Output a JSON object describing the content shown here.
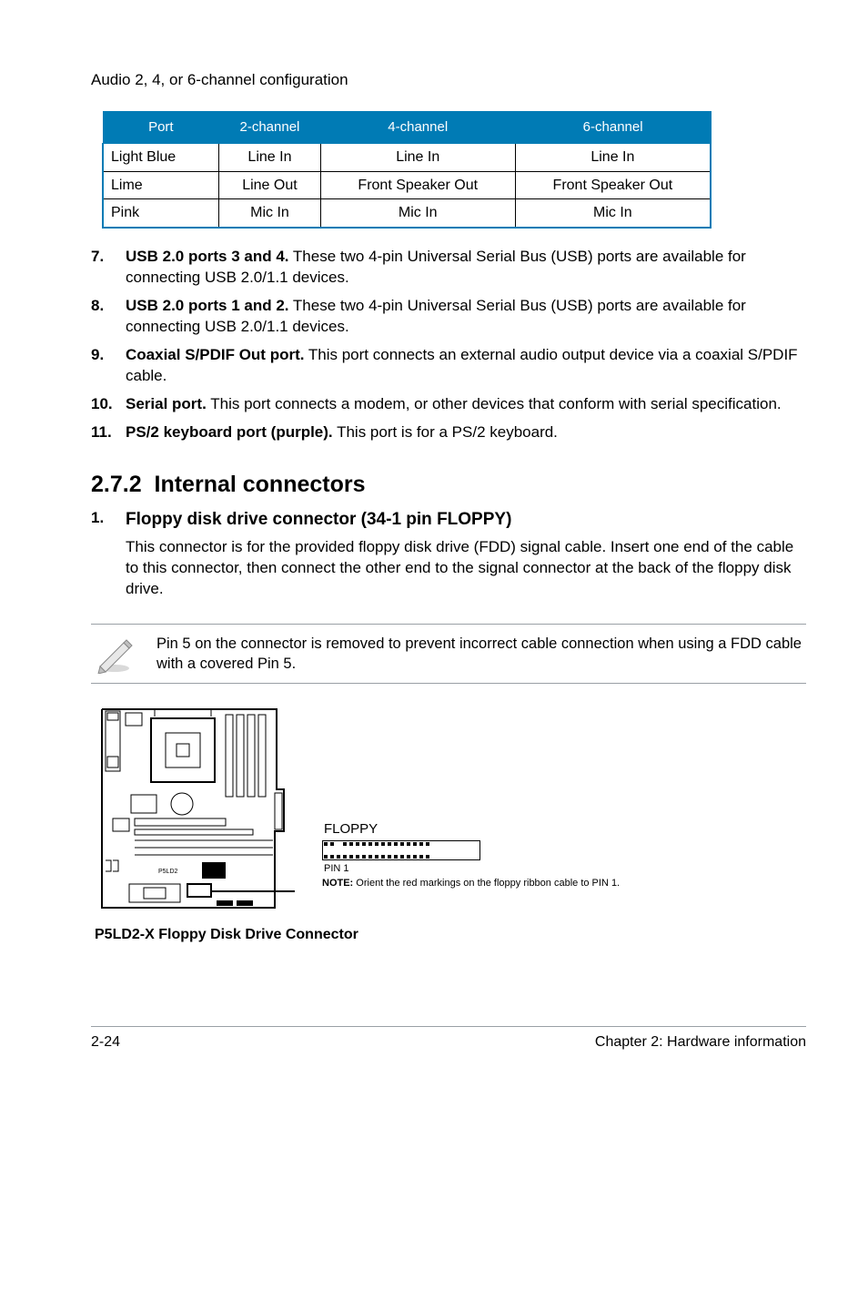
{
  "intro": "Audio 2, 4, or 6-channel configuration",
  "table": {
    "headers": [
      "Port",
      "2-channel",
      "4-channel",
      "6-channel"
    ],
    "rows": [
      [
        "Light Blue",
        "Line In",
        "Line In",
        "Line In"
      ],
      [
        "Lime",
        "Line Out",
        "Front Speaker Out",
        "Front Speaker Out"
      ],
      [
        "Pink",
        "Mic In",
        "Mic In",
        "Mic In"
      ]
    ],
    "col_align": [
      "left",
      "center",
      "center",
      "center"
    ],
    "header_bg": "#007bb5",
    "header_color": "#ffffff"
  },
  "port_items": [
    {
      "n": "7.",
      "b": "USB 2.0 ports 3 and 4.",
      "t": " These two 4-pin Universal Serial Bus (USB) ports are available for connecting USB 2.0/1.1 devices."
    },
    {
      "n": "8.",
      "b": "USB 2.0 ports 1 and 2.",
      "t": " These two 4-pin Universal Serial Bus (USB) ports are available for connecting USB 2.0/1.1 devices."
    },
    {
      "n": "9.",
      "b": "Coaxial S/PDIF Out port.",
      "t": " This port connects an external audio output device via a coaxial S/PDIF cable."
    },
    {
      "n": "10.",
      "b": "Serial port.",
      "t": " This port connects a modem, or other devices that conform with serial specification."
    },
    {
      "n": "11.",
      "b": "PS/2 keyboard port (purple).",
      "t": " This port is for a PS/2 keyboard."
    }
  ],
  "section": {
    "number": "2.7.2",
    "title": "Internal connectors"
  },
  "floppy": {
    "n": "1.",
    "heading": "Floppy disk drive connector (34-1 pin FLOPPY)",
    "body": "This connector is for the provided floppy disk drive (FDD) signal cable. Insert one end of the cable to this connector, then connect the other end to the signal connector at the back of the floppy disk drive."
  },
  "note": "Pin 5 on the connector is removed to prevent incorrect cable connection when using a FDD cable with a covered Pin 5.",
  "connector": {
    "label": "FLOPPY",
    "pin1": "PIN 1",
    "note_bold": "NOTE:",
    "note_rest": " Orient the red markings on the floppy ribbon cable to PIN 1."
  },
  "caption": "P5LD2-X Floppy Disk Drive Connector",
  "footer": {
    "left": "2-24",
    "right": "Chapter 2: Hardware information"
  }
}
